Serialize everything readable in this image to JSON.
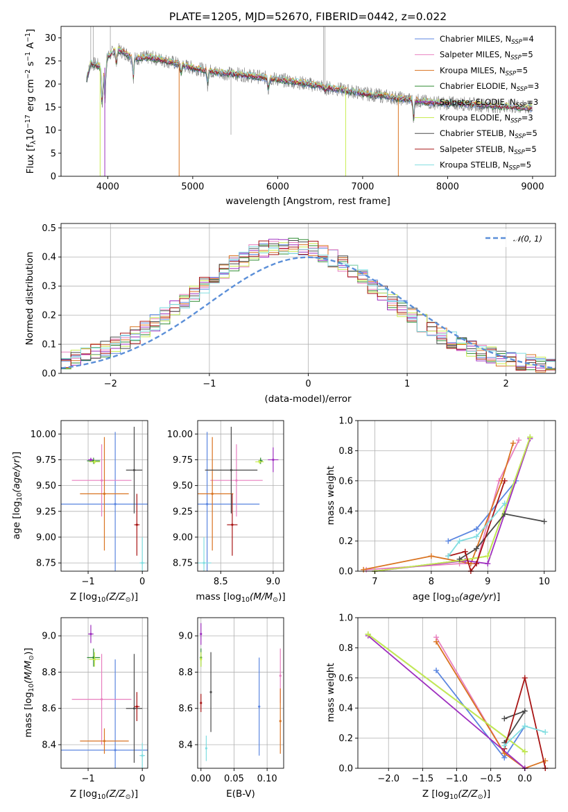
{
  "colors": {
    "Chabrier MILES": "#5b86e0",
    "Salpeter MILES": "#e87fbf",
    "Kroupa MILES": "#d97320",
    "Chabrier ELODIE": "#2e8b32",
    "Salpeter ELODIE": "#9e2fbf",
    "Kroupa ELODIE": "#c8ec50",
    "Chabrier STELIB": "#4a4a4a",
    "Salpeter STELIB": "#a81515",
    "Kroupa STELIB": "#80dde0",
    "data": "#808080",
    "normal": "#5b8fd8"
  },
  "chart_data": [
    {
      "id": "spectrum",
      "type": "line",
      "title": "PLATE=1205, MJD=52670, FIBERID=0442, z=0.022",
      "xlabel": "wavelength [Angstrom, rest frame]",
      "ylabel_main": "Flux [f",
      "ylabel_sub": "λ",
      "ylabel_rest": "10",
      "ylabel_exp1": "−17",
      "ylabel_rest2": " erg cm",
      "ylabel_exp2": "−2",
      "ylabel_rest3": " s",
      "ylabel_exp3": "−1",
      "ylabel_rest4": " A",
      "ylabel_exp4": "−1",
      "ylabel_end": "]",
      "xlim": [
        3450,
        9270
      ],
      "ylim": [
        0,
        32.5
      ],
      "xticks": [
        4000,
        5000,
        6000,
        7000,
        8000,
        9000
      ],
      "yticks": [
        0,
        5,
        10,
        15,
        20,
        25,
        30
      ],
      "continuum": {
        "x": [
          3750,
          3800,
          3900,
          3950,
          4000,
          4100,
          4200,
          4300,
          4500,
          4700,
          5000,
          5300,
          5600,
          6000,
          6300,
          6600,
          7000,
          7400,
          7800,
          8200,
          8600,
          9000
        ],
        "y": [
          21,
          24.5,
          24,
          22.5,
          26,
          27.5,
          26.8,
          25.5,
          25.8,
          25,
          23.5,
          22.5,
          22,
          21,
          20.2,
          19.2,
          18,
          17,
          16,
          15.7,
          15.2,
          14.8
        ]
      },
      "legend": [
        {
          "label": "Chabrier MILES, N",
          "sub": "SSP",
          "suffix": "=4",
          "model": "Chabrier MILES"
        },
        {
          "label": "Salpeter MILES, N",
          "sub": "SSP",
          "suffix": "=5",
          "model": "Salpeter MILES"
        },
        {
          "label": "Kroupa MILES, N",
          "sub": "SSP",
          "suffix": "=5",
          "model": "Kroupa MILES"
        },
        {
          "label": "Chabrier ELODIE, N",
          "sub": "SSP",
          "suffix": "=3",
          "model": "Chabrier ELODIE"
        },
        {
          "label": "Salpeter ELODIE, N",
          "sub": "SSP",
          "suffix": "=3",
          "model": "Salpeter ELODIE"
        },
        {
          "label": "Kroupa ELODIE, N",
          "sub": "SSP",
          "suffix": "=3",
          "model": "Kroupa ELODIE"
        },
        {
          "label": "Chabrier STELIB, N",
          "sub": "SSP",
          "suffix": "=5",
          "model": "Chabrier STELIB"
        },
        {
          "label": "Salpeter STELIB, N",
          "sub": "SSP",
          "suffix": "=5",
          "model": "Salpeter STELIB"
        },
        {
          "label": "Kroupa STELIB, N",
          "sub": "SSP",
          "suffix": "=5",
          "model": "Kroupa STELIB"
        }
      ]
    },
    {
      "id": "residuals",
      "type": "line",
      "xlabel": "(data-model)/error",
      "ylabel": "Normed distribution",
      "xlim": [
        -2.5,
        2.5
      ],
      "ylim": [
        0,
        0.515
      ],
      "xticks": [
        -2,
        -1,
        0,
        1,
        2
      ],
      "yticks": [
        0.0,
        0.1,
        0.2,
        0.3,
        0.4,
        0.5
      ],
      "legend": {
        "label": "𝒩(0, 1)"
      }
    },
    {
      "id": "z-age",
      "type": "scatter",
      "xlabel": "Z [log",
      "xlabel_sub": "10",
      "xlabel_end": "(Z/Z",
      "xlabel_sun": "⊙",
      "xlabel_close": ")]",
      "ylabel": "age  [log10(age/yr)]",
      "xlim": [
        -1.5,
        0.1
      ],
      "ylim": [
        8.67,
        10.13
      ],
      "xticks": [
        -1,
        0
      ],
      "xticklabels": [
        "−1",
        "0"
      ],
      "yticks": [
        8.75,
        9.0,
        9.25,
        9.5,
        9.75,
        10.0
      ],
      "points": [
        {
          "model": "Chabrier MILES",
          "x": -0.5,
          "xerr": 1.0,
          "y": 9.32,
          "yerr": 0.7
        },
        {
          "model": "Salpeter MILES",
          "x": -0.75,
          "xerr": 0.55,
          "y": 9.55,
          "yerr": 0.35
        },
        {
          "model": "Kroupa MILES",
          "x": -0.7,
          "xerr": 0.45,
          "y": 9.42,
          "yerr": 0.55
        },
        {
          "model": "Chabrier ELODIE",
          "x": -0.9,
          "xerr": 0.12,
          "y": 9.74,
          "yerr": 0.03
        },
        {
          "model": "Salpeter ELODIE",
          "x": -0.95,
          "xerr": 0.05,
          "y": 9.75,
          "yerr": 0.02
        },
        {
          "model": "Kroupa ELODIE",
          "x": -0.88,
          "xerr": 0.1,
          "y": 9.73,
          "yerr": 0.02
        },
        {
          "model": "Chabrier STELIB",
          "x": -0.15,
          "xerr": 0.15,
          "y": 9.65,
          "yerr": 0.42
        },
        {
          "model": "Salpeter STELIB",
          "x": -0.1,
          "xerr": 0.05,
          "y": 9.12,
          "yerr": 0.3
        },
        {
          "model": "Kroupa STELIB",
          "x": 0.0,
          "xerr": 0.05,
          "y": 8.75,
          "yerr": 0.25
        }
      ]
    },
    {
      "id": "mass-age",
      "type": "scatter",
      "xlabel": "mass [log",
      "xlabel_sub": "10",
      "xlabel_end": "(M/M",
      "xlabel_sun": "⊙",
      "xlabel_close": ")]",
      "xlim": [
        8.28,
        9.1
      ],
      "ylim": [
        8.67,
        10.13
      ],
      "xticks": [
        8.5,
        9.0
      ],
      "xticklabels": [
        "8.5",
        "9.0"
      ],
      "yticks": [
        8.75,
        9.0,
        9.25,
        9.5,
        9.75,
        10.0
      ],
      "points": [
        {
          "model": "Chabrier MILES",
          "x": 8.37,
          "xerr": 0.5,
          "y": 9.32,
          "yerr": 0.7
        },
        {
          "model": "Salpeter MILES",
          "x": 8.65,
          "xerr": 0.25,
          "y": 9.55,
          "yerr": 0.35
        },
        {
          "model": "Kroupa MILES",
          "x": 8.42,
          "xerr": 0.2,
          "y": 9.42,
          "yerr": 0.55
        },
        {
          "model": "Chabrier ELODIE",
          "x": 8.88,
          "xerr": 0.02,
          "y": 9.74,
          "yerr": 0.03
        },
        {
          "model": "Salpeter ELODIE",
          "x": 9.0,
          "xerr": 0.05,
          "y": 9.75,
          "yerr": 0.12
        },
        {
          "model": "Kroupa ELODIE",
          "x": 8.87,
          "xerr": 0.04,
          "y": 9.73,
          "yerr": 0.02
        },
        {
          "model": "Chabrier STELIB",
          "x": 8.6,
          "xerr": 0.25,
          "y": 9.65,
          "yerr": 0.42
        },
        {
          "model": "Salpeter STELIB",
          "x": 8.61,
          "xerr": 0.05,
          "y": 9.12,
          "yerr": 0.3
        },
        {
          "model": "Kroupa STELIB",
          "x": 8.34,
          "xerr": 0.07,
          "y": 8.75,
          "yerr": 0.25
        }
      ]
    },
    {
      "id": "age-weight",
      "type": "line",
      "xlabel": "age  [log10(age/yr)]",
      "ylabel": "mass weight",
      "xlim": [
        6.7,
        10.2
      ],
      "ylim": [
        0,
        1.0
      ],
      "xticks": [
        7,
        8,
        9,
        10
      ],
      "yticks": [
        0.0,
        0.2,
        0.4,
        0.6,
        0.8,
        1.0
      ],
      "series": [
        {
          "model": "Chabrier MILES",
          "x": [
            8.3,
            8.8,
            9.5
          ],
          "y": [
            0.2,
            0.28,
            0.6
          ]
        },
        {
          "model": "Salpeter MILES",
          "x": [
            6.85,
            8.5,
            8.8,
            9.2,
            9.55
          ],
          "y": [
            0.01,
            0.05,
            0.05,
            0.6,
            0.87
          ]
        },
        {
          "model": "Kroupa MILES",
          "x": [
            6.8,
            8.0,
            8.7,
            9.25,
            9.45
          ],
          "y": [
            0.01,
            0.1,
            0.05,
            0.6,
            0.85
          ]
        },
        {
          "model": "Chabrier ELODIE",
          "x": [
            7.0,
            8.5,
            9.0,
            9.75
          ],
          "y": [
            0.0,
            0.07,
            0.1,
            0.89
          ]
        },
        {
          "model": "Salpeter ELODIE",
          "x": [
            7.0,
            8.6,
            9.0,
            9.75
          ],
          "y": [
            0.0,
            0.07,
            0.05,
            0.88
          ]
        },
        {
          "model": "Kroupa ELODIE",
          "x": [
            7.0,
            8.5,
            9.0,
            9.75
          ],
          "y": [
            0.0,
            0.07,
            0.1,
            0.89
          ]
        },
        {
          "model": "Chabrier STELIB",
          "x": [
            8.5,
            8.8,
            9.3,
            10.0
          ],
          "y": [
            0.08,
            0.15,
            0.38,
            0.33
          ]
        },
        {
          "model": "Salpeter STELIB",
          "x": [
            8.3,
            8.6,
            8.7,
            8.8,
            9.3
          ],
          "y": [
            0.1,
            0.13,
            0.0,
            0.05,
            0.6
          ]
        },
        {
          "model": "Kroupa STELIB",
          "x": [
            8.3,
            8.5,
            8.8,
            9.3
          ],
          "y": [
            0.1,
            0.2,
            0.23,
            0.45
          ]
        }
      ]
    },
    {
      "id": "z-mass",
      "type": "scatter",
      "xlabel": "Z [log",
      "xlabel_sub": "10",
      "xlabel_end": "(Z/Z",
      "xlabel_sun": "⊙",
      "xlabel_close": ")]",
      "ylabel": "mass [log10(M/M⊙)]",
      "xlim": [
        -1.5,
        0.1
      ],
      "ylim": [
        8.27,
        9.1
      ],
      "xticks": [
        -1,
        0
      ],
      "xticklabels": [
        "−1",
        "0"
      ],
      "yticks": [
        8.4,
        8.6,
        8.8,
        9.0
      ],
      "points": [
        {
          "model": "Chabrier MILES",
          "x": -0.5,
          "xerr": 1.0,
          "y": 8.37,
          "yerr": 0.5
        },
        {
          "model": "Salpeter MILES",
          "x": -0.75,
          "xerr": 0.55,
          "y": 8.65,
          "yerr": 0.25
        },
        {
          "model": "Kroupa MILES",
          "x": -0.7,
          "xerr": 0.45,
          "y": 8.42,
          "yerr": 0.07
        },
        {
          "model": "Chabrier ELODIE",
          "x": -0.9,
          "xerr": 0.12,
          "y": 8.88,
          "yerr": 0.05
        },
        {
          "model": "Salpeter ELODIE",
          "x": -0.95,
          "xerr": 0.05,
          "y": 9.01,
          "yerr": 0.05
        },
        {
          "model": "Kroupa ELODIE",
          "x": -0.88,
          "xerr": 0.1,
          "y": 8.87,
          "yerr": 0.04
        },
        {
          "model": "Chabrier STELIB",
          "x": -0.15,
          "xerr": 0.15,
          "y": 8.6,
          "yerr": 0.3
        },
        {
          "model": "Salpeter STELIB",
          "x": -0.1,
          "xerr": 0.05,
          "y": 8.61,
          "yerr": 0.08
        },
        {
          "model": "Kroupa STELIB",
          "x": 0.0,
          "xerr": 0.05,
          "y": 8.34,
          "yerr": 0.07
        }
      ]
    },
    {
      "id": "ebv-mass",
      "type": "scatter",
      "xlabel": "E(B-V)",
      "xlim": [
        -0.005,
        0.125
      ],
      "ylim": [
        8.27,
        9.1
      ],
      "xticks": [
        0.0,
        0.05,
        0.1
      ],
      "xticklabels": [
        "0.00",
        "0.05",
        "0.10"
      ],
      "yticks": [
        8.4,
        8.6,
        8.8,
        9.0
      ],
      "points": [
        {
          "model": "Chabrier MILES",
          "x": 0.088,
          "y": 8.61,
          "yerr": 0.27
        },
        {
          "model": "Salpeter MILES",
          "x": 0.12,
          "y": 8.78,
          "yerr": 0.15
        },
        {
          "model": "Kroupa MILES",
          "x": 0.12,
          "y": 8.53,
          "yerr": 0.18
        },
        {
          "model": "Chabrier ELODIE",
          "x": 0.0,
          "y": 8.88,
          "yerr": 0.05
        },
        {
          "model": "Salpeter ELODIE",
          "x": 0.0,
          "y": 9.01,
          "yerr": 0.06
        },
        {
          "model": "Kroupa ELODIE",
          "x": 0.0,
          "y": 8.87,
          "yerr": 0.04
        },
        {
          "model": "Chabrier STELIB",
          "x": 0.015,
          "y": 8.69,
          "yerr": 0.22
        },
        {
          "model": "Salpeter STELIB",
          "x": 0.0,
          "y": 8.63,
          "yerr": 0.05
        },
        {
          "model": "Kroupa STELIB",
          "x": 0.008,
          "y": 8.38,
          "yerr": 0.07
        }
      ]
    },
    {
      "id": "z-weight",
      "type": "line",
      "xlabel": "Z [log",
      "xlabel_sub": "10",
      "xlabel_end": "(Z/Z",
      "xlabel_sun": "⊙",
      "xlabel_close": ")]",
      "ylabel": "mass weight",
      "xlim": [
        -2.45,
        0.45
      ],
      "ylim": [
        0,
        1.0
      ],
      "xticks": [
        -2.0,
        -1.5,
        -1.0,
        -0.5,
        0.0
      ],
      "xticklabels": [
        "−2.0",
        "−1.5",
        "−1.0",
        "−0.5",
        "0.0"
      ],
      "yticks": [
        0.0,
        0.2,
        0.4,
        0.6,
        0.8,
        1.0
      ],
      "series": [
        {
          "model": "Chabrier MILES",
          "x": [
            -1.3,
            -0.3,
            0.0
          ],
          "y": [
            0.65,
            0.07,
            0.28
          ]
        },
        {
          "model": "Salpeter MILES",
          "x": [
            -1.3,
            -0.3,
            0.0
          ],
          "y": [
            0.87,
            0.1,
            0.0
          ]
        },
        {
          "model": "Kroupa MILES",
          "x": [
            -1.3,
            -0.3,
            0.0,
            0.3
          ],
          "y": [
            0.84,
            0.1,
            0.0,
            0.05
          ]
        },
        {
          "model": "Chabrier ELODIE",
          "x": [
            -2.3,
            0.0
          ],
          "y": [
            0.89,
            0.11
          ]
        },
        {
          "model": "Salpeter ELODIE",
          "x": [
            -2.3,
            0.0
          ],
          "y": [
            0.88,
            0.0
          ]
        },
        {
          "model": "Kroupa ELODIE",
          "x": [
            -2.3,
            0.0
          ],
          "y": [
            0.89,
            0.11
          ]
        },
        {
          "model": "Chabrier STELIB",
          "x": [
            -0.3,
            0.0,
            -0.3
          ],
          "y": [
            0.33,
            0.38,
            0.17
          ]
        },
        {
          "model": "Salpeter STELIB",
          "x": [
            -0.3,
            0.0,
            0.3
          ],
          "y": [
            0.13,
            0.6,
            0.0
          ]
        },
        {
          "model": "Kroupa STELIB",
          "x": [
            -0.3,
            0.0,
            0.3
          ],
          "y": [
            0.15,
            0.28,
            0.24
          ]
        }
      ]
    }
  ]
}
